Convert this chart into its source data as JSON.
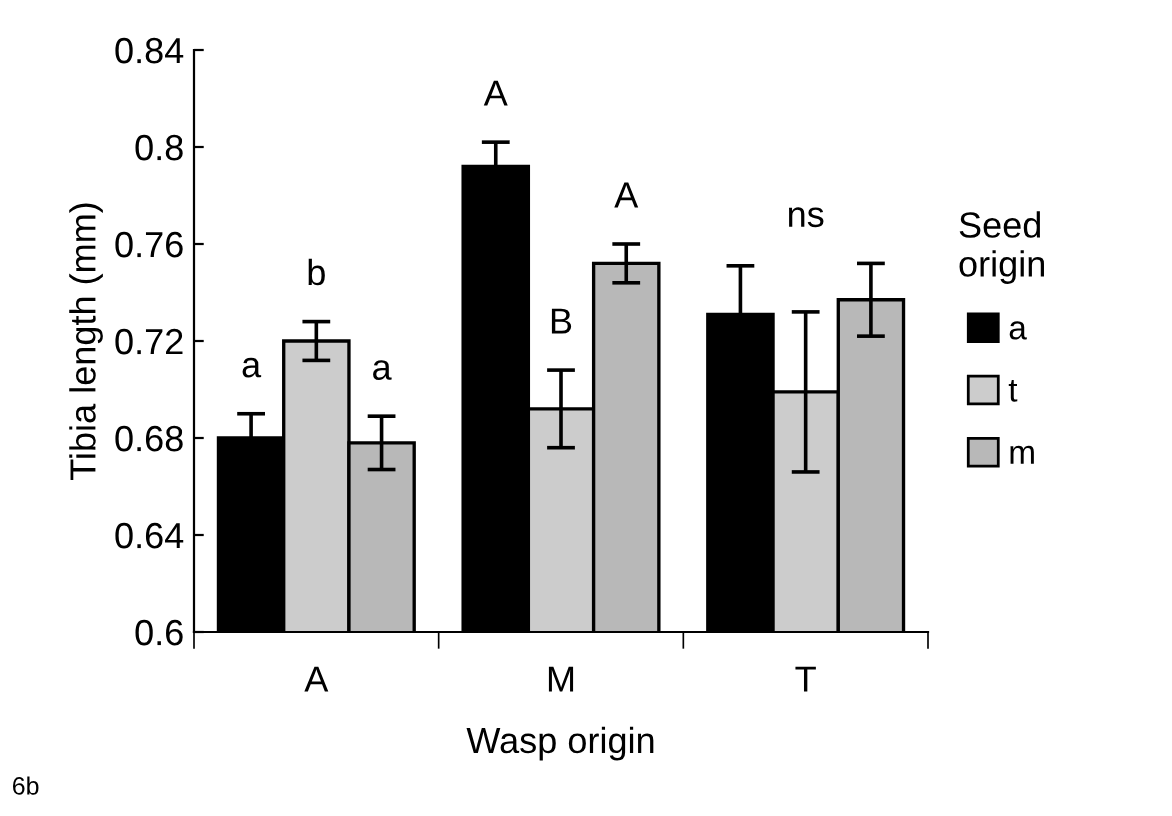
{
  "chart_data": {
    "type": "bar",
    "xlabel": "Wasp origin",
    "ylabel": "Tibia length (mm)",
    "legend_title": "Seed\norigin",
    "categories": [
      "A",
      "M",
      "T"
    ],
    "series": [
      {
        "name": "a",
        "color": "#000000",
        "values": [
          0.68,
          0.792,
          0.731
        ],
        "errors": [
          0.01,
          0.01,
          0.02
        ]
      },
      {
        "name": "t",
        "color": "#cccccc",
        "values": [
          0.72,
          0.692,
          0.699
        ],
        "errors": [
          0.008,
          0.016,
          0.033
        ]
      },
      {
        "name": "m",
        "color": "#b8b8b8",
        "values": [
          0.678,
          0.752,
          0.737
        ],
        "errors": [
          0.011,
          0.008,
          0.015
        ]
      }
    ],
    "ylim": [
      0.6,
      0.84
    ],
    "yticks": [
      0.6,
      0.64,
      0.68,
      0.72,
      0.76,
      0.8,
      0.84
    ],
    "grid": false,
    "legend": "right",
    "annotations": [
      "a",
      "b",
      "a",
      "A",
      "B",
      "A",
      "ns",
      "6b"
    ]
  }
}
